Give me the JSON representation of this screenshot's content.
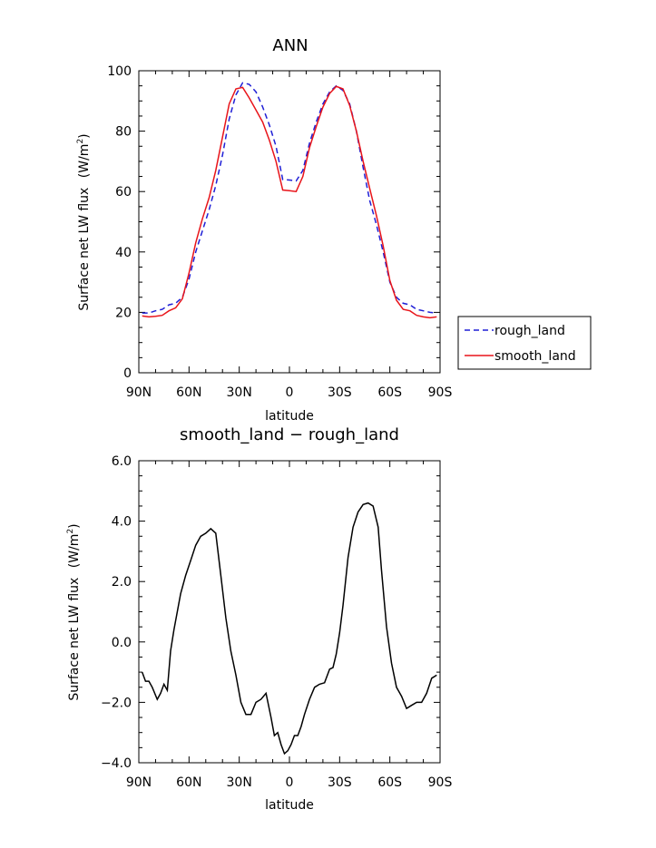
{
  "chart_data": [
    {
      "type": "line",
      "title": "ANN",
      "xlabel": "latitude",
      "ylabel_main": "Surface net LW flux",
      "ylabel_unit_prefix": "(W/m",
      "ylabel_unit_sup": "2",
      "ylabel_unit_suffix": ")",
      "x_tick_labels": [
        "90N",
        "60N",
        "30N",
        "0",
        "30S",
        "60S",
        "90S"
      ],
      "y_tick_labels": [
        "0",
        "20",
        "40",
        "60",
        "80",
        "100"
      ],
      "xlim": [
        90,
        -90
      ],
      "ylim": [
        0,
        100
      ],
      "legend_position": "right",
      "series": [
        {
          "name": "rough_land",
          "color": "#1f1fd6",
          "dashed": true,
          "x": [
            88,
            84,
            80,
            76,
            72,
            68,
            64,
            60,
            56,
            52,
            48,
            44,
            40,
            36,
            32,
            28,
            24,
            20,
            16,
            12,
            8,
            4,
            0,
            -4,
            -8,
            -12,
            -16,
            -20,
            -24,
            -28,
            -32,
            -36,
            -40,
            -44,
            -48,
            -52,
            -56,
            -60,
            -64,
            -68,
            -72,
            -76,
            -80,
            -84,
            -88
          ],
          "values": [
            19.8,
            19.8,
            20.5,
            21.0,
            22.5,
            23.0,
            25.0,
            31.0,
            40.0,
            47.0,
            54.0,
            62.0,
            72.0,
            84.0,
            92.0,
            96.0,
            95.5,
            93.0,
            88.0,
            82.0,
            75.0,
            64.0,
            63.8,
            63.5,
            67.0,
            76.0,
            83.0,
            89.0,
            93.0,
            95.0,
            93.5,
            89.0,
            80.0,
            68.0,
            57.0,
            49.0,
            40.0,
            30.0,
            25.0,
            23.0,
            22.5,
            21.0,
            20.5,
            20.0,
            19.8
          ]
        },
        {
          "name": "smooth_land",
          "color": "#e8141a",
          "dashed": false,
          "x": [
            88,
            84,
            80,
            76,
            72,
            68,
            64,
            60,
            56,
            52,
            48,
            44,
            40,
            36,
            32,
            28,
            24,
            20,
            16,
            12,
            8,
            4,
            0,
            -4,
            -8,
            -12,
            -16,
            -20,
            -24,
            -28,
            -32,
            -36,
            -40,
            -44,
            -48,
            -52,
            -56,
            -60,
            -64,
            -68,
            -72,
            -76,
            -80,
            -84,
            -88
          ],
          "values": [
            18.8,
            18.5,
            18.7,
            19.0,
            20.5,
            21.5,
            24.5,
            33.0,
            43.0,
            51.0,
            58.0,
            67.0,
            78.0,
            89.0,
            94.0,
            94.5,
            91.0,
            87.0,
            83.0,
            77.0,
            70.0,
            60.5,
            60.3,
            60.0,
            65.0,
            74.5,
            81.5,
            88.0,
            92.5,
            94.8,
            94.0,
            88.5,
            80.0,
            70.0,
            61.0,
            52.0,
            42.0,
            30.5,
            24.0,
            21.0,
            20.5,
            19.0,
            18.5,
            18.2,
            18.5
          ]
        }
      ]
    },
    {
      "type": "line",
      "title": "smooth_land − rough_land",
      "xlabel": "latitude",
      "ylabel_main": "Surface net LW flux",
      "ylabel_unit_prefix": "(W/m",
      "ylabel_unit_sup": "2",
      "ylabel_unit_suffix": ")",
      "x_tick_labels": [
        "90N",
        "60N",
        "30N",
        "0",
        "30S",
        "60S",
        "90S"
      ],
      "y_tick_labels": [
        "−4.0",
        "−2.0",
        "0.0",
        "2.0",
        "4.0",
        "6.0"
      ],
      "xlim": [
        90,
        -90
      ],
      "ylim": [
        -4,
        6
      ],
      "series": [
        {
          "color": "#000000",
          "dashed": false,
          "x": [
            88,
            86,
            84,
            82,
            79,
            77,
            75,
            73,
            71,
            69,
            67,
            65,
            62,
            59,
            56,
            53,
            50,
            47,
            44,
            41,
            38,
            35,
            32,
            29,
            26,
            23,
            20,
            17,
            14,
            11,
            9,
            7,
            5,
            3,
            1,
            -1,
            -3,
            -5,
            -7,
            -9,
            -12,
            -15,
            -18,
            -21,
            -24,
            -26,
            -28,
            -30,
            -32,
            -35,
            -38,
            -41,
            -44,
            -47,
            -50,
            -53,
            -55,
            -58,
            -61,
            -64,
            -67,
            -70,
            -73,
            -76,
            -79,
            -82,
            -85,
            -88
          ],
          "values": [
            -1.0,
            -1.3,
            -1.3,
            -1.5,
            -1.9,
            -1.7,
            -1.4,
            -1.6,
            -0.3,
            0.4,
            1.0,
            1.6,
            2.2,
            2.7,
            3.2,
            3.5,
            3.6,
            3.75,
            3.6,
            2.2,
            0.8,
            -0.3,
            -1.1,
            -2.0,
            -2.4,
            -2.4,
            -2.0,
            -1.9,
            -1.7,
            -2.5,
            -3.1,
            -3.0,
            -3.4,
            -3.7,
            -3.6,
            -3.4,
            -3.1,
            -3.1,
            -2.8,
            -2.4,
            -1.9,
            -1.5,
            -1.4,
            -1.35,
            -0.9,
            -0.85,
            -0.4,
            0.3,
            1.2,
            2.8,
            3.8,
            4.3,
            4.55,
            4.6,
            4.5,
            3.8,
            2.4,
            0.5,
            -0.7,
            -1.5,
            -1.8,
            -2.2,
            -2.1,
            -2.0,
            -2.0,
            -1.7,
            -1.2,
            -1.1
          ]
        }
      ]
    }
  ]
}
